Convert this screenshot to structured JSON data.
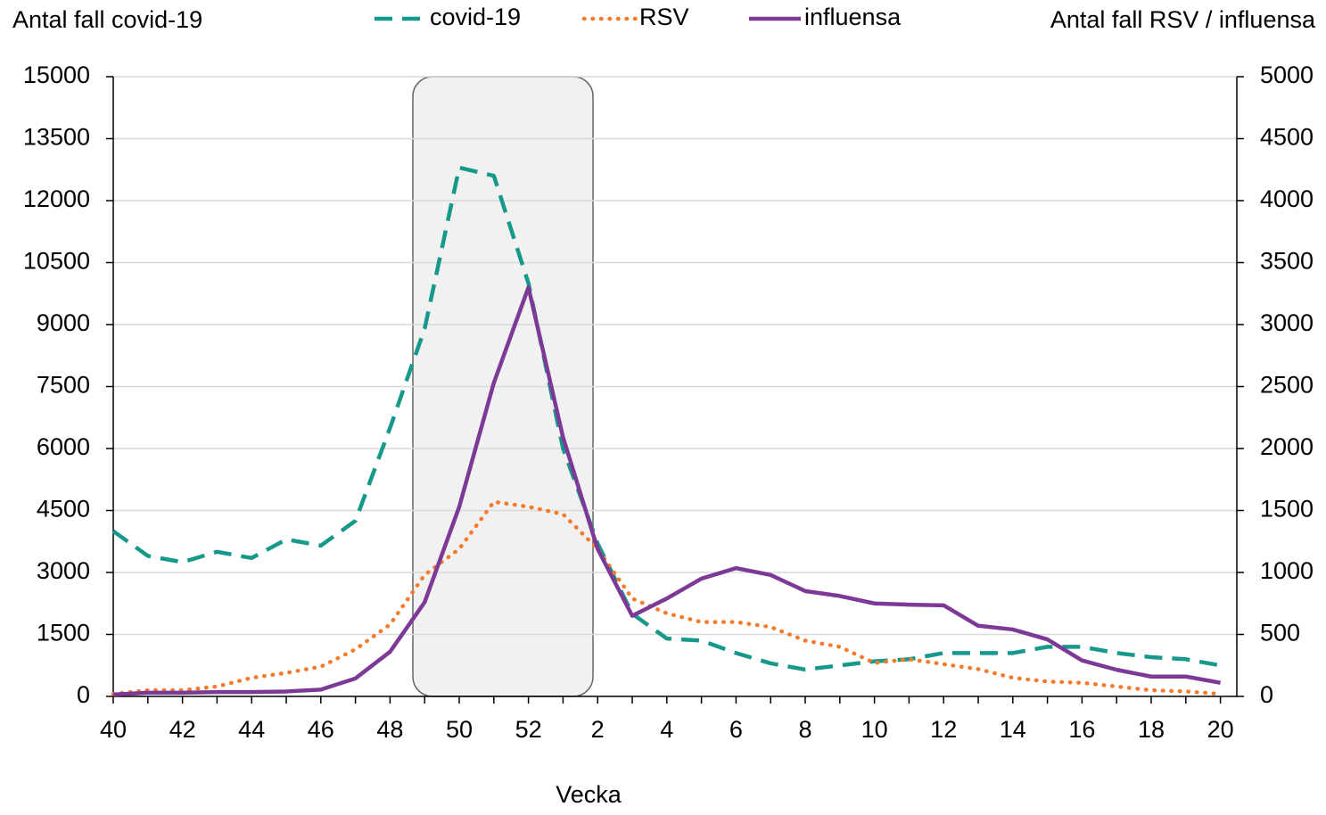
{
  "chart_data": {
    "type": "line",
    "y_axis_title": "Antal fall covid-19",
    "y2_axis_title": "Antal fall RSV / influensa",
    "x_axis_title": "Vecka",
    "categories": [
      "40",
      null,
      "42",
      null,
      "44",
      null,
      "46",
      null,
      "48",
      null,
      "50",
      null,
      "52",
      null,
      "2",
      null,
      "4",
      null,
      "6",
      null,
      "8",
      null,
      "10",
      null,
      "12",
      null,
      "14",
      null,
      "16",
      null,
      "18",
      null,
      "20"
    ],
    "ylim": [
      0,
      15000
    ],
    "yticks": [
      0,
      1500,
      3000,
      4500,
      6000,
      7500,
      9000,
      10500,
      12000,
      13500,
      15000
    ],
    "y2lim": [
      0,
      5000
    ],
    "y2ticks": [
      0,
      500,
      1000,
      1500,
      2000,
      2500,
      3000,
      3500,
      4000,
      4500,
      5000
    ],
    "grid": true,
    "series": [
      {
        "name": "covid-19",
        "color": "#16998a",
        "style": "dashed",
        "values": [
          4000,
          3400,
          3250,
          3500,
          3350,
          3800,
          3650,
          4250,
          6500,
          8900,
          12800,
          12600,
          10000,
          6000,
          3700,
          2000,
          1400,
          1350,
          1050,
          800,
          650,
          750,
          850,
          900,
          1050,
          1050,
          1050,
          1200,
          1200,
          1050,
          950,
          900,
          750
        ]
      },
      {
        "name": "RSV",
        "color": "#f47a2c",
        "style": "dotted",
        "axis": "y2",
        "values": [
          20,
          50,
          50,
          80,
          150,
          190,
          240,
          380,
          580,
          980,
          1190,
          1570,
          1530,
          1470,
          1190,
          790,
          670,
          600,
          600,
          560,
          450,
          400,
          270,
          300,
          260,
          220,
          150,
          120,
          110,
          80,
          50,
          40,
          20
        ]
      },
      {
        "name": "influensa",
        "color": "#7d3996",
        "style": "solid",
        "axis": "y2",
        "values": [
          15,
          30,
          30,
          35,
          35,
          40,
          55,
          145,
          360,
          760,
          1530,
          2530,
          3300,
          2090,
          1190,
          650,
          790,
          950,
          1035,
          980,
          850,
          810,
          750,
          740,
          735,
          570,
          540,
          460,
          290,
          215,
          160,
          160,
          110
        ]
      }
    ]
  }
}
